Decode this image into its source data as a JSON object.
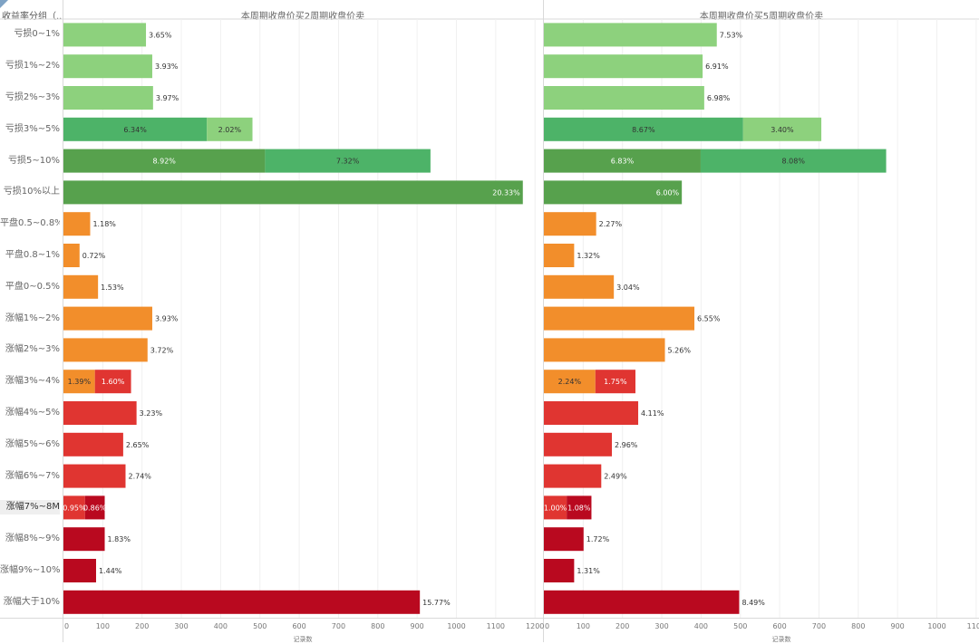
{
  "header": {
    "row_header": "收益率分组（..",
    "left_title": "本周期收盘价买2周期收盘价卖",
    "right_title": "本周期收盘价买5周期收盘价卖"
  },
  "colors": {
    "light_green": "#8dd17d",
    "mid_green": "#4db368",
    "dark_green": "#57a14d",
    "orange": "#f28e2b",
    "red": "#e03531",
    "dark_red": "#b9091f"
  },
  "chart_data": {
    "type": "bar",
    "orientation": "horizontal-stacked",
    "categories": [
      "亏损0~1%",
      "亏损1%~2%",
      "亏损2%~3%",
      "亏损3%~5%",
      "亏损5~10%",
      "亏损10%以上",
      "平盘0.5~0.8%",
      "平盘0.8~1%",
      "平盘0~0.5%",
      "涨幅1%~2%",
      "涨幅2%~3%",
      "涨幅3%~4%",
      "涨幅4%~5%",
      "涨幅5%~6%",
      "涨幅6%~7%",
      "涨幅7%~8M",
      "涨幅8%~9%",
      "涨幅9%~10%",
      "涨幅大于10%"
    ],
    "highlight_category": "涨幅7%~8M",
    "panels": [
      {
        "title": "本周期收盘价买2周期收盘价卖",
        "xlabel": "记录数",
        "xlim": [
          0,
          1200
        ],
        "ticks": [
          "0",
          "100",
          "200",
          "300",
          "400",
          "500",
          "600",
          "700",
          "800",
          "900",
          "1000",
          "1100",
          "1200"
        ],
        "bars": [
          [
            {
              "value": 210,
              "label": "3.65%",
              "color": "light_green"
            }
          ],
          [
            {
              "value": 226,
              "label": "3.93%",
              "color": "light_green"
            }
          ],
          [
            {
              "value": 228,
              "label": "3.97%",
              "color": "light_green"
            }
          ],
          [
            {
              "value": 365,
              "label": "6.34%",
              "color": "mid_green"
            },
            {
              "value": 116,
              "label": "2.02%",
              "color": "light_green"
            }
          ],
          [
            {
              "value": 513,
              "label": "8.92%",
              "color": "dark_green"
            },
            {
              "value": 421,
              "label": "7.32%",
              "color": "mid_green"
            }
          ],
          [
            {
              "value": 1169,
              "label": "20.33%",
              "color": "dark_green"
            }
          ],
          [
            {
              "value": 68,
              "label": "1.18%",
              "color": "orange"
            }
          ],
          [
            {
              "value": 41,
              "label": "0.72%",
              "color": "orange"
            }
          ],
          [
            {
              "value": 88,
              "label": "1.53%",
              "color": "orange"
            }
          ],
          [
            {
              "value": 226,
              "label": "3.93%",
              "color": "orange"
            }
          ],
          [
            {
              "value": 214,
              "label": "3.72%",
              "color": "orange"
            }
          ],
          [
            {
              "value": 80,
              "label": "1.39%",
              "color": "orange"
            },
            {
              "value": 92,
              "label": "1.60%",
              "color": "red"
            }
          ],
          [
            {
              "value": 186,
              "label": "3.23%",
              "color": "red"
            }
          ],
          [
            {
              "value": 152,
              "label": "2.65%",
              "color": "red"
            }
          ],
          [
            {
              "value": 158,
              "label": "2.74%",
              "color": "red"
            }
          ],
          [
            {
              "value": 55,
              "label": "0.95%",
              "color": "red"
            },
            {
              "value": 50,
              "label": "0.86%",
              "color": "dark_red"
            }
          ],
          [
            {
              "value": 105,
              "label": "1.83%",
              "color": "dark_red"
            }
          ],
          [
            {
              "value": 83,
              "label": "1.44%",
              "color": "dark_red"
            }
          ],
          [
            {
              "value": 907,
              "label": "15.77%",
              "color": "dark_red"
            }
          ]
        ]
      },
      {
        "title": "本周期收盘价买5周期收盘价卖",
        "xlabel": "记录数",
        "xlim": [
          0,
          1100
        ],
        "ticks": [
          "0",
          "100",
          "200",
          "300",
          "400",
          "500",
          "600",
          "700",
          "800",
          "900",
          "1000",
          "1100"
        ],
        "bars": [
          [
            {
              "value": 440,
              "label": "7.53%",
              "color": "light_green"
            }
          ],
          [
            {
              "value": 404,
              "label": "6.91%",
              "color": "light_green"
            }
          ],
          [
            {
              "value": 408,
              "label": "6.98%",
              "color": "light_green"
            }
          ],
          [
            {
              "value": 507,
              "label": "8.67%",
              "color": "mid_green"
            },
            {
              "value": 199,
              "label": "3.40%",
              "color": "light_green"
            }
          ],
          [
            {
              "value": 399,
              "label": "6.83%",
              "color": "dark_green"
            },
            {
              "value": 472,
              "label": "8.08%",
              "color": "mid_green"
            }
          ],
          [
            {
              "value": 351,
              "label": "6.00%",
              "color": "dark_green"
            }
          ],
          [
            {
              "value": 133,
              "label": "2.27%",
              "color": "orange"
            }
          ],
          [
            {
              "value": 77,
              "label": "1.32%",
              "color": "orange"
            }
          ],
          [
            {
              "value": 178,
              "label": "3.04%",
              "color": "orange"
            }
          ],
          [
            {
              "value": 383,
              "label": "6.55%",
              "color": "orange"
            }
          ],
          [
            {
              "value": 308,
              "label": "5.26%",
              "color": "orange"
            }
          ],
          [
            {
              "value": 131,
              "label": "2.24%",
              "color": "orange"
            },
            {
              "value": 102,
              "label": "1.75%",
              "color": "red"
            }
          ],
          [
            {
              "value": 240,
              "label": "4.11%",
              "color": "red"
            }
          ],
          [
            {
              "value": 173,
              "label": "2.96%",
              "color": "red"
            }
          ],
          [
            {
              "value": 146,
              "label": "2.49%",
              "color": "red"
            }
          ],
          [
            {
              "value": 58,
              "label": "1.00%",
              "color": "red"
            },
            {
              "value": 63,
              "label": "1.08%",
              "color": "dark_red"
            }
          ],
          [
            {
              "value": 101,
              "label": "1.72%",
              "color": "dark_red"
            }
          ],
          [
            {
              "value": 77,
              "label": "1.31%",
              "color": "dark_red"
            }
          ],
          [
            {
              "value": 497,
              "label": "8.49%",
              "color": "dark_red"
            }
          ]
        ]
      }
    ]
  }
}
